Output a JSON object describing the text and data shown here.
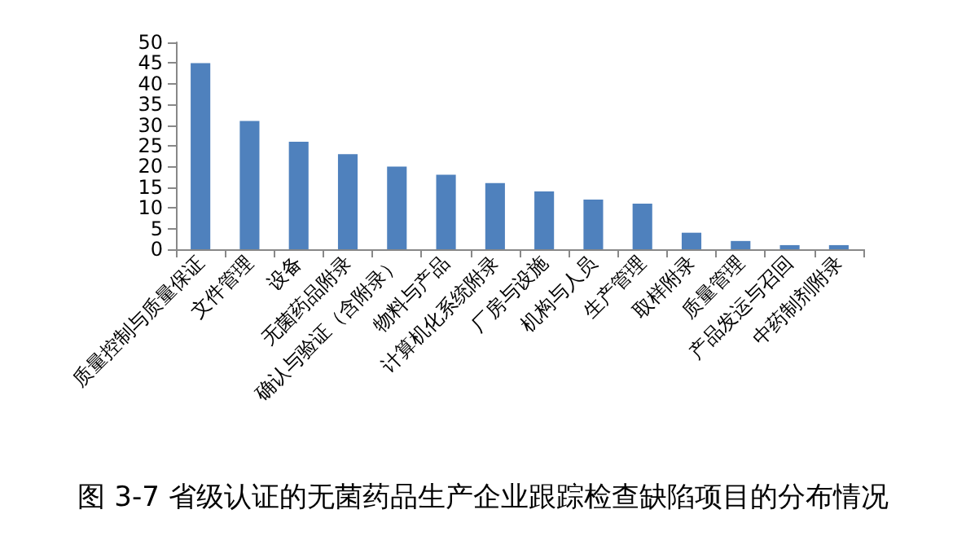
{
  "chart_data": {
    "type": "bar",
    "title": "图 3-7 省级认证的无菌药品生产企业跟踪检查缺陷项目的分布情况",
    "categories": [
      "质量控制与质量保证",
      "文件管理",
      "设备",
      "无菌药品附录",
      "确认与验证（含附录）",
      "物料与产品",
      "计算机化系统附录",
      "厂房与设施",
      "机构与人员",
      "生产管理",
      "取样附录",
      "质量管理",
      "产品发运与召回",
      "中药制剂附录"
    ],
    "values": [
      45,
      31,
      26,
      23,
      20,
      18,
      16,
      14,
      12,
      11,
      4,
      2,
      1,
      1
    ],
    "color": "#4f81bd",
    "ylim": [
      0,
      50
    ],
    "yticks": [
      0,
      5,
      10,
      15,
      20,
      25,
      30,
      35,
      40,
      45,
      50
    ],
    "grid": false
  }
}
